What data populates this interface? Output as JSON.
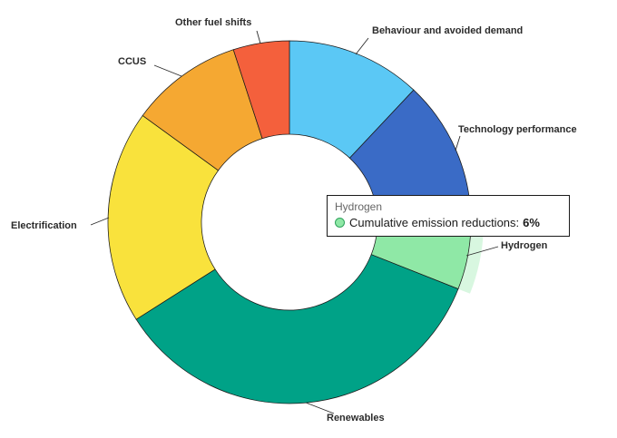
{
  "chart_data": {
    "type": "pie",
    "subtype": "donut",
    "title": "",
    "unit": "%",
    "legend_position": "none",
    "slices": [
      {
        "id": "behaviour-and-avoided-demand",
        "label": "Behaviour and avoided demand",
        "value": 12,
        "color": "#5BC8F5"
      },
      {
        "id": "technology-performance",
        "label": "Technology performance",
        "value": 13,
        "color": "#3A6BC6"
      },
      {
        "id": "hydrogen",
        "label": "Hydrogen",
        "value": 6,
        "color": "#8FE8A6",
        "highlighted": true
      },
      {
        "id": "renewables",
        "label": "Renewables",
        "value": 35,
        "color": "#00A287"
      },
      {
        "id": "electrification",
        "label": "Electrification",
        "value": 19,
        "color": "#F9E23C"
      },
      {
        "id": "ccus",
        "label": "CCUS",
        "value": 10,
        "color": "#F5A832"
      },
      {
        "id": "other-fuel-shifts",
        "label": "Other fuel shifts",
        "value": 5,
        "color": "#F4603C"
      }
    ],
    "tooltip": {
      "title": "Hydrogen",
      "series": "Cumulative emission reductions:",
      "value": "6%",
      "marker_color": "#8FE8A6"
    }
  }
}
